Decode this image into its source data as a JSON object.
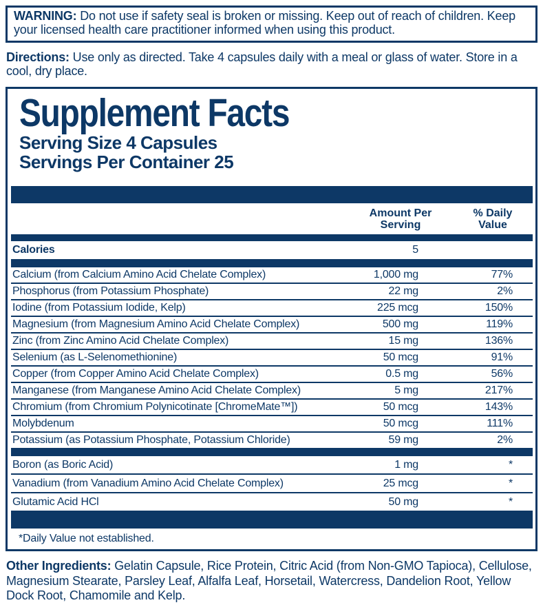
{
  "colors": {
    "navy": "#0d3866",
    "background": "#ffffff"
  },
  "warning": {
    "label": "WARNING:",
    "text": "Do not use if safety seal is broken or missing. Keep out of reach of children. Keep your licensed health care practitioner informed when using this product."
  },
  "directions": {
    "label": "Directions:",
    "text": "Use only as directed. Take 4 capsules daily with a meal or glass of water. Store in a cool, dry place."
  },
  "panel": {
    "title": "Supplement Facts",
    "serving_size": "Serving Size 4 Capsules",
    "servings_per_container": "Servings Per Container 25",
    "header": {
      "amount_line1": "Amount Per",
      "amount_line2": "Serving",
      "percent_line1": "% Daily",
      "percent_line2": "Value"
    },
    "calories": {
      "name": "Calories",
      "amount": "5",
      "percent": ""
    },
    "main_rows": [
      {
        "name": "Calcium (from Calcium Amino Acid Chelate Complex)",
        "amount": "1,000 mg",
        "percent": "77%"
      },
      {
        "name": "Phosphorus (from Potassium Phosphate)",
        "amount": "22 mg",
        "percent": "2%"
      },
      {
        "name": "Iodine (from Potassium Iodide, Kelp)",
        "amount": "225 mcg",
        "percent": "150%"
      },
      {
        "name": "Magnesium (from Magnesium Amino Acid Chelate Complex)",
        "amount": "500 mg",
        "percent": "119%"
      },
      {
        "name": "Zinc (from Zinc Amino Acid Chelate Complex)",
        "amount": "15 mg",
        "percent": "136%"
      },
      {
        "name": "Selenium (as L-Selenomethionine)",
        "amount": "50 mcg",
        "percent": "91%"
      },
      {
        "name": "Copper (from Copper Amino Acid Chelate Complex)",
        "amount": "0.5 mg",
        "percent": "56%"
      },
      {
        "name": "Manganese (from Manganese Amino Acid Chelate Complex)",
        "amount": "5 mg",
        "percent": "217%"
      },
      {
        "name": "Chromium (from Chromium Polynicotinate [ChromeMate™])",
        "amount": "50 mcg",
        "percent": "143%"
      },
      {
        "name": "Molybdenum",
        "amount": "50 mcg",
        "percent": "111%"
      },
      {
        "name": "Potassium (as Potassium Phosphate, Potassium Chloride)",
        "amount": "59 mg",
        "percent": "2%"
      }
    ],
    "footnote_rows": [
      {
        "name": "Boron (as Boric Acid)",
        "amount": "1 mg",
        "percent": "*"
      },
      {
        "name": "Vanadium (from Vanadium Amino Acid Chelate Complex)",
        "amount": "25 mcg",
        "percent": "*"
      },
      {
        "name": "Glutamic Acid HCl",
        "amount": "50 mg",
        "percent": "*"
      }
    ],
    "footnote": "*Daily Value not established."
  },
  "other_ingredients": {
    "label": "Other Ingredients:",
    "text": "Gelatin Capsule, Rice Protein, Citric Acid (from Non-GMO Tapioca), Cellulose, Magnesium Stearate, Parsley Leaf, Alfalfa Leaf, Horsetail, Watercress, Dandelion Root, Yellow Dock Root, Chamomile and Kelp."
  }
}
